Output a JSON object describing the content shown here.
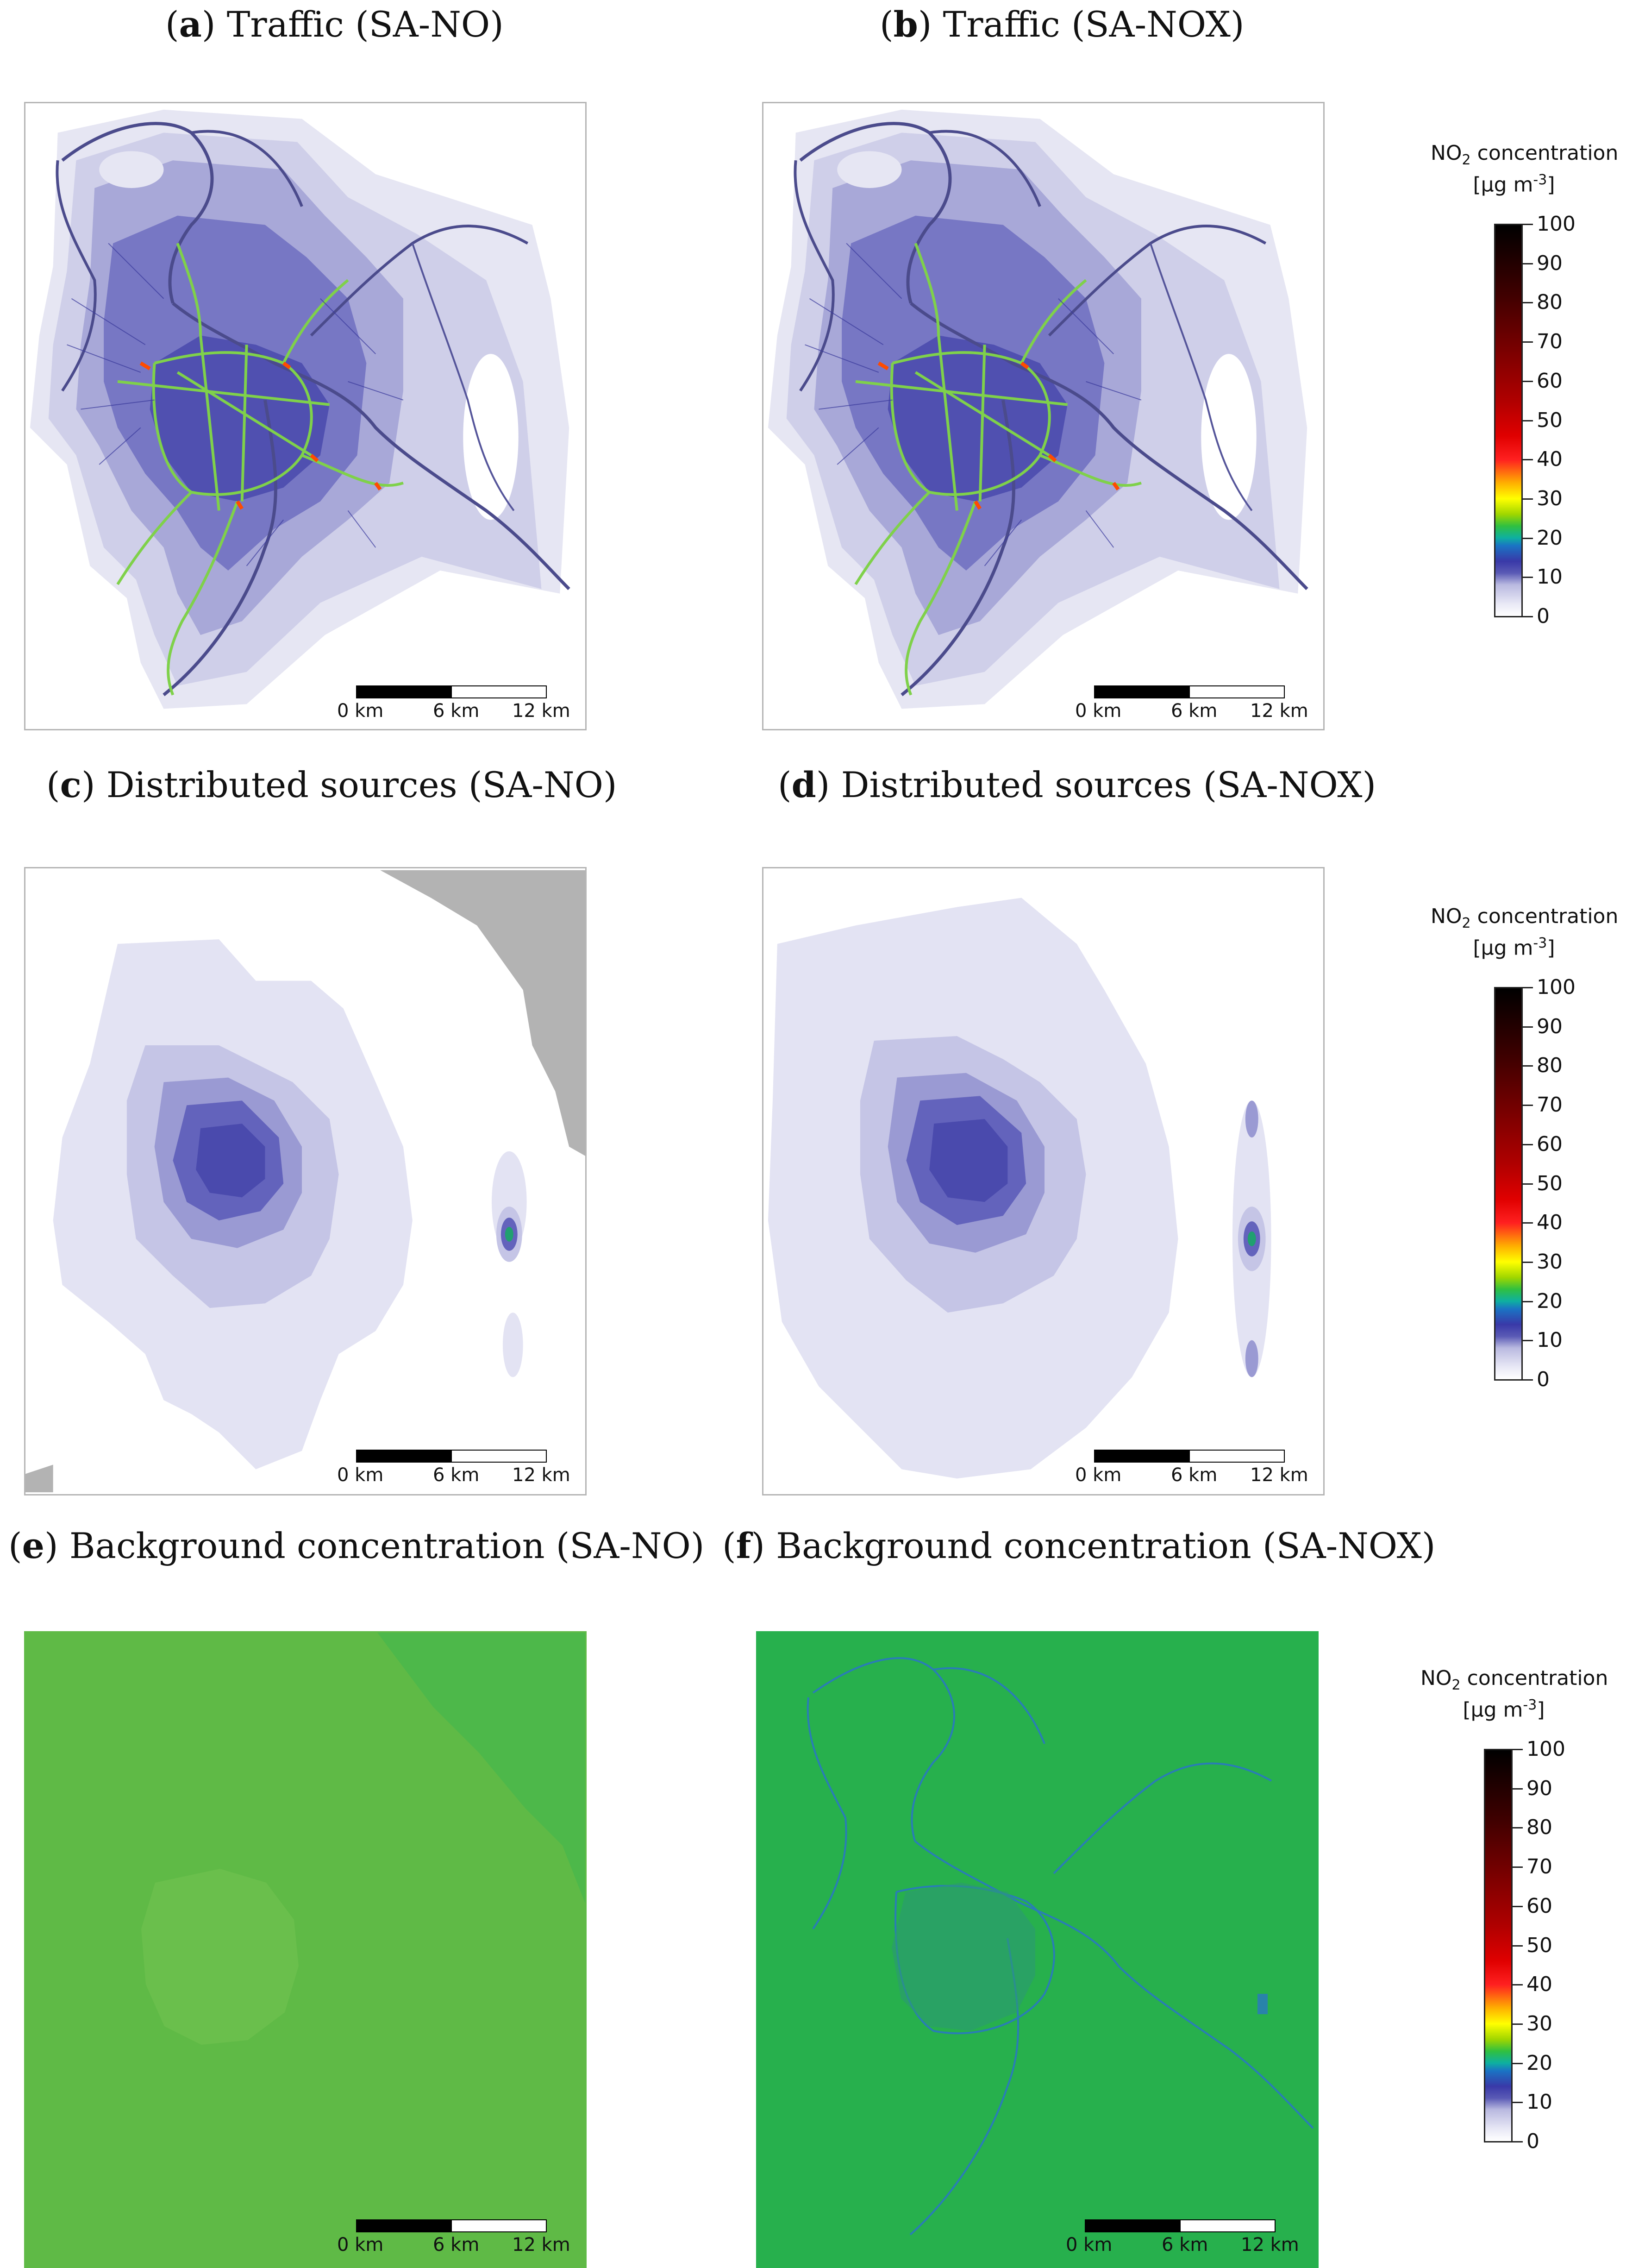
{
  "panels": [
    {
      "id": "a",
      "letter": "a",
      "title": ") Traffic (SA-NO)"
    },
    {
      "id": "b",
      "letter": "b",
      "title": ") Traffic (SA-NOX)"
    },
    {
      "id": "c",
      "letter": "c",
      "title": ") Distributed sources (SA-NO)"
    },
    {
      "id": "d",
      "letter": "d",
      "title": ") Distributed sources (SA-NOX)"
    },
    {
      "id": "e",
      "letter": "e",
      "title": ") Background concentration (SA-NO)"
    },
    {
      "id": "f",
      "letter": "f",
      "title": ") Background concentration (SA-NOX)"
    }
  ],
  "scalebar": {
    "labels": [
      "0 km",
      "6 km",
      "12 km"
    ]
  },
  "legend": {
    "title_prefix": "NO",
    "title_sub": "2",
    "title_suffix": " concentration",
    "unit_prefix": "[µg m",
    "unit_sup": "-3",
    "unit_suffix": "]",
    "ticks": [
      "100",
      "90",
      "80",
      "70",
      "60",
      "50",
      "40",
      "30",
      "20",
      "10",
      "0"
    ],
    "range": [
      0,
      100
    ]
  },
  "colors": {
    "traffic_bg": "#e6e6f3",
    "traffic_mid": "#6b6bbf",
    "traffic_dense": "#3d3da6",
    "road_hot": "#7fd14a",
    "distributed_halo": "#dcdcf0",
    "distributed_core": "#4a4aad",
    "land_grey": "#b3b3b3",
    "background_no": "#5fba46",
    "background_nox": "#27b04d",
    "background_roads": "#2a78c2"
  }
}
